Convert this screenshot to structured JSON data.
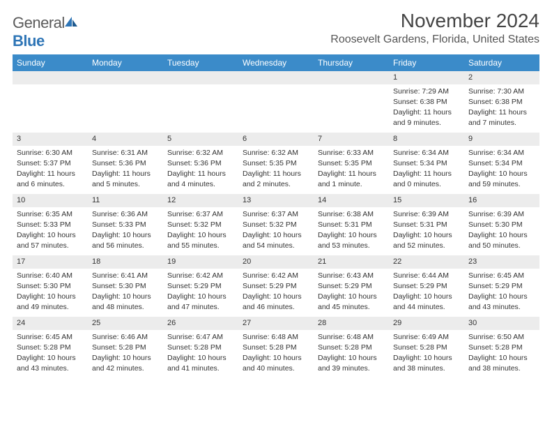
{
  "logo": {
    "text1": "General",
    "text2": "Blue"
  },
  "title": "November 2024",
  "location": "Roosevelt Gardens, Florida, United States",
  "colors": {
    "header_bg": "#3b8bc9",
    "header_text": "#ffffff",
    "daynum_bg": "#ececec",
    "text": "#333333",
    "logo_gray": "#5a5a5a",
    "logo_blue": "#2e75b6"
  },
  "weekdays": [
    "Sunday",
    "Monday",
    "Tuesday",
    "Wednesday",
    "Thursday",
    "Friday",
    "Saturday"
  ],
  "weeks": [
    [
      null,
      null,
      null,
      null,
      null,
      {
        "n": "1",
        "sr": "Sunrise: 7:29 AM",
        "ss": "Sunset: 6:38 PM",
        "dl1": "Daylight: 11 hours",
        "dl2": "and 9 minutes."
      },
      {
        "n": "2",
        "sr": "Sunrise: 7:30 AM",
        "ss": "Sunset: 6:38 PM",
        "dl1": "Daylight: 11 hours",
        "dl2": "and 7 minutes."
      }
    ],
    [
      {
        "n": "3",
        "sr": "Sunrise: 6:30 AM",
        "ss": "Sunset: 5:37 PM",
        "dl1": "Daylight: 11 hours",
        "dl2": "and 6 minutes."
      },
      {
        "n": "4",
        "sr": "Sunrise: 6:31 AM",
        "ss": "Sunset: 5:36 PM",
        "dl1": "Daylight: 11 hours",
        "dl2": "and 5 minutes."
      },
      {
        "n": "5",
        "sr": "Sunrise: 6:32 AM",
        "ss": "Sunset: 5:36 PM",
        "dl1": "Daylight: 11 hours",
        "dl2": "and 4 minutes."
      },
      {
        "n": "6",
        "sr": "Sunrise: 6:32 AM",
        "ss": "Sunset: 5:35 PM",
        "dl1": "Daylight: 11 hours",
        "dl2": "and 2 minutes."
      },
      {
        "n": "7",
        "sr": "Sunrise: 6:33 AM",
        "ss": "Sunset: 5:35 PM",
        "dl1": "Daylight: 11 hours",
        "dl2": "and 1 minute."
      },
      {
        "n": "8",
        "sr": "Sunrise: 6:34 AM",
        "ss": "Sunset: 5:34 PM",
        "dl1": "Daylight: 11 hours",
        "dl2": "and 0 minutes."
      },
      {
        "n": "9",
        "sr": "Sunrise: 6:34 AM",
        "ss": "Sunset: 5:34 PM",
        "dl1": "Daylight: 10 hours",
        "dl2": "and 59 minutes."
      }
    ],
    [
      {
        "n": "10",
        "sr": "Sunrise: 6:35 AM",
        "ss": "Sunset: 5:33 PM",
        "dl1": "Daylight: 10 hours",
        "dl2": "and 57 minutes."
      },
      {
        "n": "11",
        "sr": "Sunrise: 6:36 AM",
        "ss": "Sunset: 5:33 PM",
        "dl1": "Daylight: 10 hours",
        "dl2": "and 56 minutes."
      },
      {
        "n": "12",
        "sr": "Sunrise: 6:37 AM",
        "ss": "Sunset: 5:32 PM",
        "dl1": "Daylight: 10 hours",
        "dl2": "and 55 minutes."
      },
      {
        "n": "13",
        "sr": "Sunrise: 6:37 AM",
        "ss": "Sunset: 5:32 PM",
        "dl1": "Daylight: 10 hours",
        "dl2": "and 54 minutes."
      },
      {
        "n": "14",
        "sr": "Sunrise: 6:38 AM",
        "ss": "Sunset: 5:31 PM",
        "dl1": "Daylight: 10 hours",
        "dl2": "and 53 minutes."
      },
      {
        "n": "15",
        "sr": "Sunrise: 6:39 AM",
        "ss": "Sunset: 5:31 PM",
        "dl1": "Daylight: 10 hours",
        "dl2": "and 52 minutes."
      },
      {
        "n": "16",
        "sr": "Sunrise: 6:39 AM",
        "ss": "Sunset: 5:30 PM",
        "dl1": "Daylight: 10 hours",
        "dl2": "and 50 minutes."
      }
    ],
    [
      {
        "n": "17",
        "sr": "Sunrise: 6:40 AM",
        "ss": "Sunset: 5:30 PM",
        "dl1": "Daylight: 10 hours",
        "dl2": "and 49 minutes."
      },
      {
        "n": "18",
        "sr": "Sunrise: 6:41 AM",
        "ss": "Sunset: 5:30 PM",
        "dl1": "Daylight: 10 hours",
        "dl2": "and 48 minutes."
      },
      {
        "n": "19",
        "sr": "Sunrise: 6:42 AM",
        "ss": "Sunset: 5:29 PM",
        "dl1": "Daylight: 10 hours",
        "dl2": "and 47 minutes."
      },
      {
        "n": "20",
        "sr": "Sunrise: 6:42 AM",
        "ss": "Sunset: 5:29 PM",
        "dl1": "Daylight: 10 hours",
        "dl2": "and 46 minutes."
      },
      {
        "n": "21",
        "sr": "Sunrise: 6:43 AM",
        "ss": "Sunset: 5:29 PM",
        "dl1": "Daylight: 10 hours",
        "dl2": "and 45 minutes."
      },
      {
        "n": "22",
        "sr": "Sunrise: 6:44 AM",
        "ss": "Sunset: 5:29 PM",
        "dl1": "Daylight: 10 hours",
        "dl2": "and 44 minutes."
      },
      {
        "n": "23",
        "sr": "Sunrise: 6:45 AM",
        "ss": "Sunset: 5:29 PM",
        "dl1": "Daylight: 10 hours",
        "dl2": "and 43 minutes."
      }
    ],
    [
      {
        "n": "24",
        "sr": "Sunrise: 6:45 AM",
        "ss": "Sunset: 5:28 PM",
        "dl1": "Daylight: 10 hours",
        "dl2": "and 43 minutes."
      },
      {
        "n": "25",
        "sr": "Sunrise: 6:46 AM",
        "ss": "Sunset: 5:28 PM",
        "dl1": "Daylight: 10 hours",
        "dl2": "and 42 minutes."
      },
      {
        "n": "26",
        "sr": "Sunrise: 6:47 AM",
        "ss": "Sunset: 5:28 PM",
        "dl1": "Daylight: 10 hours",
        "dl2": "and 41 minutes."
      },
      {
        "n": "27",
        "sr": "Sunrise: 6:48 AM",
        "ss": "Sunset: 5:28 PM",
        "dl1": "Daylight: 10 hours",
        "dl2": "and 40 minutes."
      },
      {
        "n": "28",
        "sr": "Sunrise: 6:48 AM",
        "ss": "Sunset: 5:28 PM",
        "dl1": "Daylight: 10 hours",
        "dl2": "and 39 minutes."
      },
      {
        "n": "29",
        "sr": "Sunrise: 6:49 AM",
        "ss": "Sunset: 5:28 PM",
        "dl1": "Daylight: 10 hours",
        "dl2": "and 38 minutes."
      },
      {
        "n": "30",
        "sr": "Sunrise: 6:50 AM",
        "ss": "Sunset: 5:28 PM",
        "dl1": "Daylight: 10 hours",
        "dl2": "and 38 minutes."
      }
    ]
  ]
}
